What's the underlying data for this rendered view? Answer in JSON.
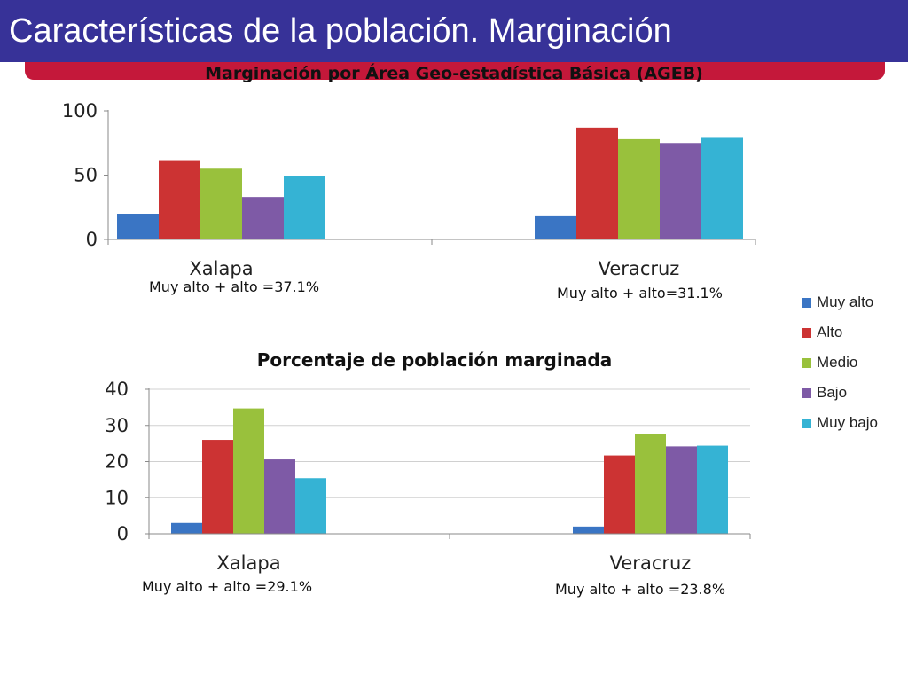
{
  "header": {
    "title": "Características de la población. Marginación",
    "bar_color": "#373298",
    "accent_color": "#c4183a"
  },
  "legend": {
    "items": [
      {
        "label": "Muy alto",
        "color": "#3a75c4"
      },
      {
        "label": "Alto",
        "color": "#cc3333"
      },
      {
        "label": "Medio",
        "color": "#99c13c"
      },
      {
        "label": "Bajo",
        "color": "#7e5aa6"
      },
      {
        "label": "Muy bajo",
        "color": "#35b3d4"
      }
    ]
  },
  "notes": {
    "chart1_xalapa": "Muy alto + alto =37.1%",
    "chart1_veracruz": "Muy alto + alto=31.1%",
    "chart2_xalapa": "Muy alto + alto =29.1%",
    "chart2_veracruz": "Muy alto + alto =23.8%"
  },
  "chart_data": [
    {
      "type": "bar",
      "title": "Marginación por Área Geo-estadística Básica (AGEB)",
      "categories": [
        "Xalapa",
        "Veracruz"
      ],
      "series": [
        {
          "name": "Muy alto",
          "values": [
            20,
            18
          ]
        },
        {
          "name": "Alto",
          "values": [
            61,
            87
          ]
        },
        {
          "name": "Medio",
          "values": [
            55,
            78
          ]
        },
        {
          "name": "Bajo",
          "values": [
            33,
            75
          ]
        },
        {
          "name": "Muy bajo",
          "values": [
            49,
            79
          ]
        }
      ],
      "ylim": [
        0,
        100
      ],
      "yticks": [
        0,
        50,
        100
      ],
      "grid": false,
      "legend": "right"
    },
    {
      "type": "bar",
      "title": "Porcentaje de población marginada",
      "categories": [
        "Xalapa",
        "Veracruz"
      ],
      "series": [
        {
          "name": "Muy alto",
          "values": [
            3,
            2
          ]
        },
        {
          "name": "Alto",
          "values": [
            26,
            21.7
          ]
        },
        {
          "name": "Medio",
          "values": [
            34.7,
            27.5
          ]
        },
        {
          "name": "Bajo",
          "values": [
            20.6,
            24.2
          ]
        },
        {
          "name": "Muy bajo",
          "values": [
            15.4,
            24.4
          ]
        }
      ],
      "ylim": [
        0,
        40
      ],
      "yticks": [
        0,
        10,
        20,
        30,
        40
      ],
      "grid": true,
      "legend": "right"
    }
  ]
}
